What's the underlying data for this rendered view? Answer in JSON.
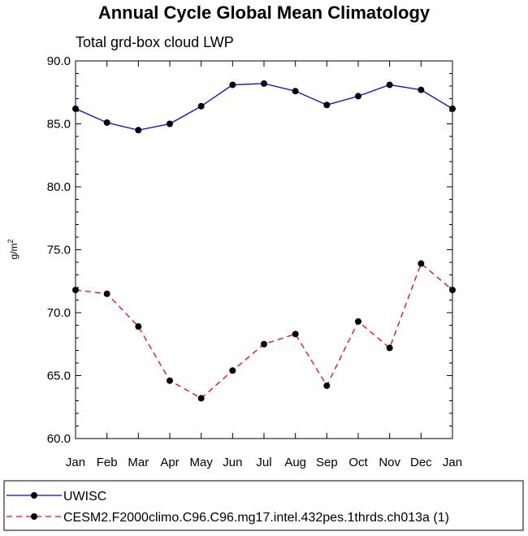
{
  "chart_data": {
    "type": "line",
    "title": "Annual Cycle Global Mean Climatology",
    "subtitle": "Total grd-box cloud LWP",
    "ylabel_base": "g/m",
    "ylabel_sup": "2",
    "ylim": [
      60.0,
      90.0
    ],
    "yticks": [
      "60.0",
      "65.0",
      "70.0",
      "75.0",
      "80.0",
      "85.0",
      "90.0"
    ],
    "categories": [
      "Jan",
      "Feb",
      "Mar",
      "Apr",
      "May",
      "Jun",
      "Jul",
      "Aug",
      "Sep",
      "Oct",
      "Nov",
      "Dec",
      "Jan"
    ],
    "series": [
      {
        "name": "UWISC",
        "color": "#0000ff",
        "dash": "solid",
        "values": [
          86.2,
          85.1,
          84.5,
          85.0,
          86.4,
          88.1,
          88.2,
          87.6,
          86.5,
          87.2,
          88.1,
          87.7,
          86.2
        ]
      },
      {
        "name": "CESM2.F2000climo.C96.C96.mg17.intel.432pes.1thrds.ch013a (1)",
        "color": "#ff0000",
        "dash": "dashed",
        "values": [
          71.8,
          71.5,
          68.9,
          64.6,
          63.2,
          65.4,
          67.5,
          68.3,
          64.2,
          69.3,
          67.2,
          73.9,
          71.8
        ]
      }
    ],
    "grid": false,
    "legend_position": "bottom"
  }
}
